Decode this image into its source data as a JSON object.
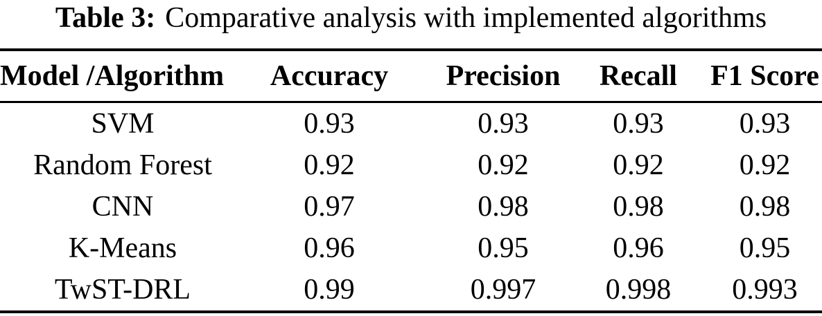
{
  "caption": {
    "label": "Table 3:",
    "text": "Comparative analysis with implemented algorithms"
  },
  "table": {
    "columns": [
      "Model /Algorithm",
      "Accuracy",
      "Precision",
      "Recall",
      "F1 Score"
    ],
    "rows": [
      {
        "model": "SVM",
        "values": [
          "0.93",
          "0.93",
          "0.93",
          "0.93"
        ]
      },
      {
        "model": "Random Forest",
        "values": [
          "0.92",
          "0.92",
          "0.92",
          "0.92"
        ]
      },
      {
        "model": "CNN",
        "values": [
          "0.97",
          "0.98",
          "0.98",
          "0.98"
        ]
      },
      {
        "model": "K-Means",
        "values": [
          "0.96",
          "0.95",
          "0.96",
          "0.95"
        ]
      },
      {
        "model": "TwST-DRL",
        "values": [
          "0.99",
          "0.997",
          "0.998",
          "0.993"
        ]
      }
    ]
  },
  "chart_data": {
    "type": "table",
    "title": "Table 3: Comparative analysis with implemented algorithms",
    "columns": [
      "Model /Algorithm",
      "Accuracy",
      "Precision",
      "Recall",
      "F1 Score"
    ],
    "rows": [
      [
        "SVM",
        0.93,
        0.93,
        0.93,
        0.93
      ],
      [
        "Random Forest",
        0.92,
        0.92,
        0.92,
        0.92
      ],
      [
        "CNN",
        0.97,
        0.98,
        0.98,
        0.98
      ],
      [
        "K-Means",
        0.96,
        0.95,
        0.96,
        0.95
      ],
      [
        "TwST-DRL",
        0.99,
        0.997,
        0.998,
        0.993
      ]
    ]
  },
  "colors": {
    "text": "#000000",
    "background": "#ffffff",
    "rule": "#000000"
  }
}
